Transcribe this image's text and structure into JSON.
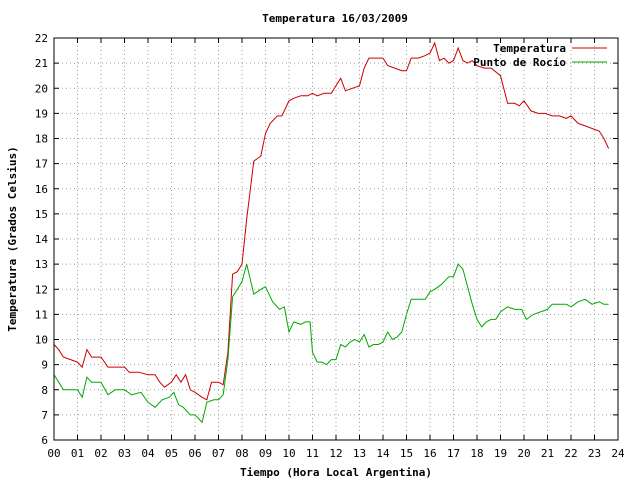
{
  "chart_data": {
    "type": "line",
    "title": "Temperatura 16/03/2009",
    "xlabel": "Tiempo (Hora Local Argentina)",
    "ylabel": "Temperatura (Grados Celsius)",
    "xlim": [
      0,
      24
    ],
    "ylim": [
      6,
      22
    ],
    "x_ticks": [
      0,
      1,
      2,
      3,
      4,
      5,
      6,
      7,
      8,
      9,
      10,
      11,
      12,
      13,
      14,
      15,
      16,
      17,
      18,
      19,
      20,
      21,
      22,
      23,
      24
    ],
    "x_tick_labels": [
      "00",
      "01",
      "02",
      "03",
      "04",
      "05",
      "06",
      "07",
      "08",
      "09",
      "10",
      "11",
      "12",
      "13",
      "14",
      "15",
      "16",
      "17",
      "18",
      "19",
      "20",
      "21",
      "22",
      "23",
      "24"
    ],
    "y_ticks": [
      6,
      7,
      8,
      9,
      10,
      11,
      12,
      13,
      14,
      15,
      16,
      17,
      18,
      19,
      20,
      21,
      22
    ],
    "grid": true,
    "legend_position": "top-right",
    "series": [
      {
        "name": "Temperatura",
        "color": "#cc0000",
        "points": [
          [
            0,
            9.8
          ],
          [
            0.2,
            9.6
          ],
          [
            0.4,
            9.3
          ],
          [
            0.7,
            9.2
          ],
          [
            1.0,
            9.1
          ],
          [
            1.2,
            8.9
          ],
          [
            1.4,
            9.6
          ],
          [
            1.6,
            9.3
          ],
          [
            2.0,
            9.3
          ],
          [
            2.3,
            8.9
          ],
          [
            2.6,
            8.9
          ],
          [
            3.0,
            8.9
          ],
          [
            3.2,
            8.7
          ],
          [
            3.6,
            8.7
          ],
          [
            4.0,
            8.6
          ],
          [
            4.3,
            8.6
          ],
          [
            4.5,
            8.3
          ],
          [
            4.7,
            8.1
          ],
          [
            5.0,
            8.3
          ],
          [
            5.2,
            8.6
          ],
          [
            5.4,
            8.3
          ],
          [
            5.6,
            8.6
          ],
          [
            5.8,
            8.0
          ],
          [
            6.0,
            7.9
          ],
          [
            6.3,
            7.7
          ],
          [
            6.5,
            7.6
          ],
          [
            6.7,
            8.3
          ],
          [
            7.0,
            8.3
          ],
          [
            7.2,
            8.2
          ],
          [
            7.4,
            9.5
          ],
          [
            7.6,
            12.6
          ],
          [
            7.8,
            12.7
          ],
          [
            8.0,
            13.0
          ],
          [
            8.2,
            14.8
          ],
          [
            8.5,
            17.1
          ],
          [
            8.8,
            17.3
          ],
          [
            9.0,
            18.2
          ],
          [
            9.2,
            18.6
          ],
          [
            9.5,
            18.9
          ],
          [
            9.7,
            18.9
          ],
          [
            10.0,
            19.5
          ],
          [
            10.2,
            19.6
          ],
          [
            10.5,
            19.7
          ],
          [
            10.8,
            19.7
          ],
          [
            11.0,
            19.8
          ],
          [
            11.2,
            19.7
          ],
          [
            11.5,
            19.8
          ],
          [
            11.8,
            19.8
          ],
          [
            12.0,
            20.1
          ],
          [
            12.2,
            20.4
          ],
          [
            12.4,
            19.9
          ],
          [
            12.7,
            20.0
          ],
          [
            13.0,
            20.1
          ],
          [
            13.2,
            20.8
          ],
          [
            13.4,
            21.2
          ],
          [
            13.7,
            21.2
          ],
          [
            14.0,
            21.2
          ],
          [
            14.2,
            20.9
          ],
          [
            14.5,
            20.8
          ],
          [
            14.8,
            20.7
          ],
          [
            15.0,
            20.7
          ],
          [
            15.2,
            21.2
          ],
          [
            15.5,
            21.2
          ],
          [
            15.8,
            21.3
          ],
          [
            16.0,
            21.4
          ],
          [
            16.2,
            21.8
          ],
          [
            16.4,
            21.1
          ],
          [
            16.6,
            21.2
          ],
          [
            16.8,
            21.0
          ],
          [
            17.0,
            21.1
          ],
          [
            17.2,
            21.6
          ],
          [
            17.4,
            21.1
          ],
          [
            17.6,
            21.0
          ],
          [
            17.8,
            21.1
          ],
          [
            18.0,
            20.9
          ],
          [
            18.3,
            20.8
          ],
          [
            18.6,
            20.8
          ],
          [
            19.0,
            20.5
          ],
          [
            19.3,
            19.4
          ],
          [
            19.6,
            19.4
          ],
          [
            19.8,
            19.3
          ],
          [
            20.0,
            19.5
          ],
          [
            20.3,
            19.1
          ],
          [
            20.6,
            19.0
          ],
          [
            20.9,
            19.0
          ],
          [
            21.2,
            18.9
          ],
          [
            21.5,
            18.9
          ],
          [
            21.8,
            18.8
          ],
          [
            22.0,
            18.9
          ],
          [
            22.3,
            18.6
          ],
          [
            22.6,
            18.5
          ],
          [
            22.9,
            18.4
          ],
          [
            23.2,
            18.3
          ],
          [
            23.4,
            18.0
          ],
          [
            23.6,
            17.6
          ]
        ]
      },
      {
        "name": "Punto de Rocío",
        "color": "#00aa00",
        "points": [
          [
            0,
            8.6
          ],
          [
            0.2,
            8.3
          ],
          [
            0.4,
            8.0
          ],
          [
            0.7,
            8.0
          ],
          [
            1.0,
            8.0
          ],
          [
            1.2,
            7.7
          ],
          [
            1.4,
            8.5
          ],
          [
            1.6,
            8.3
          ],
          [
            2.0,
            8.3
          ],
          [
            2.3,
            7.8
          ],
          [
            2.6,
            8.0
          ],
          [
            3.0,
            8.0
          ],
          [
            3.3,
            7.8
          ],
          [
            3.7,
            7.9
          ],
          [
            4.0,
            7.5
          ],
          [
            4.3,
            7.3
          ],
          [
            4.6,
            7.6
          ],
          [
            4.9,
            7.7
          ],
          [
            5.1,
            7.9
          ],
          [
            5.3,
            7.4
          ],
          [
            5.5,
            7.3
          ],
          [
            5.8,
            7.0
          ],
          [
            6.0,
            7.0
          ],
          [
            6.3,
            6.7
          ],
          [
            6.5,
            7.5
          ],
          [
            6.8,
            7.6
          ],
          [
            7.0,
            7.6
          ],
          [
            7.2,
            7.8
          ],
          [
            7.4,
            9.2
          ],
          [
            7.6,
            11.7
          ],
          [
            7.8,
            12.0
          ],
          [
            8.0,
            12.3
          ],
          [
            8.2,
            13.0
          ],
          [
            8.5,
            11.8
          ],
          [
            8.8,
            12.0
          ],
          [
            9.0,
            12.1
          ],
          [
            9.3,
            11.5
          ],
          [
            9.6,
            11.2
          ],
          [
            9.8,
            11.3
          ],
          [
            10.0,
            10.3
          ],
          [
            10.2,
            10.7
          ],
          [
            10.5,
            10.6
          ],
          [
            10.7,
            10.7
          ],
          [
            10.9,
            10.7
          ],
          [
            11.0,
            9.5
          ],
          [
            11.2,
            9.1
          ],
          [
            11.4,
            9.1
          ],
          [
            11.6,
            9.0
          ],
          [
            11.8,
            9.2
          ],
          [
            12.0,
            9.2
          ],
          [
            12.2,
            9.8
          ],
          [
            12.4,
            9.7
          ],
          [
            12.6,
            9.9
          ],
          [
            12.8,
            10.0
          ],
          [
            13.0,
            9.9
          ],
          [
            13.2,
            10.2
          ],
          [
            13.4,
            9.7
          ],
          [
            13.6,
            9.8
          ],
          [
            13.8,
            9.8
          ],
          [
            14.0,
            9.9
          ],
          [
            14.2,
            10.3
          ],
          [
            14.4,
            10.0
          ],
          [
            14.6,
            10.1
          ],
          [
            14.8,
            10.3
          ],
          [
            15.0,
            11.0
          ],
          [
            15.2,
            11.6
          ],
          [
            15.5,
            11.6
          ],
          [
            15.8,
            11.6
          ],
          [
            16.0,
            11.9
          ],
          [
            16.2,
            12.0
          ],
          [
            16.5,
            12.2
          ],
          [
            16.8,
            12.5
          ],
          [
            17.0,
            12.5
          ],
          [
            17.2,
            13.0
          ],
          [
            17.4,
            12.8
          ],
          [
            17.6,
            12.1
          ],
          [
            17.8,
            11.4
          ],
          [
            18.0,
            10.8
          ],
          [
            18.2,
            10.5
          ],
          [
            18.4,
            10.7
          ],
          [
            18.6,
            10.8
          ],
          [
            18.8,
            10.8
          ],
          [
            19.0,
            11.1
          ],
          [
            19.3,
            11.3
          ],
          [
            19.6,
            11.2
          ],
          [
            19.9,
            11.2
          ],
          [
            20.1,
            10.8
          ],
          [
            20.4,
            11.0
          ],
          [
            20.7,
            11.1
          ],
          [
            21.0,
            11.2
          ],
          [
            21.2,
            11.4
          ],
          [
            21.5,
            11.4
          ],
          [
            21.8,
            11.4
          ],
          [
            22.0,
            11.3
          ],
          [
            22.3,
            11.5
          ],
          [
            22.6,
            11.6
          ],
          [
            22.9,
            11.4
          ],
          [
            23.2,
            11.5
          ],
          [
            23.4,
            11.4
          ],
          [
            23.6,
            11.4
          ]
        ]
      }
    ]
  }
}
